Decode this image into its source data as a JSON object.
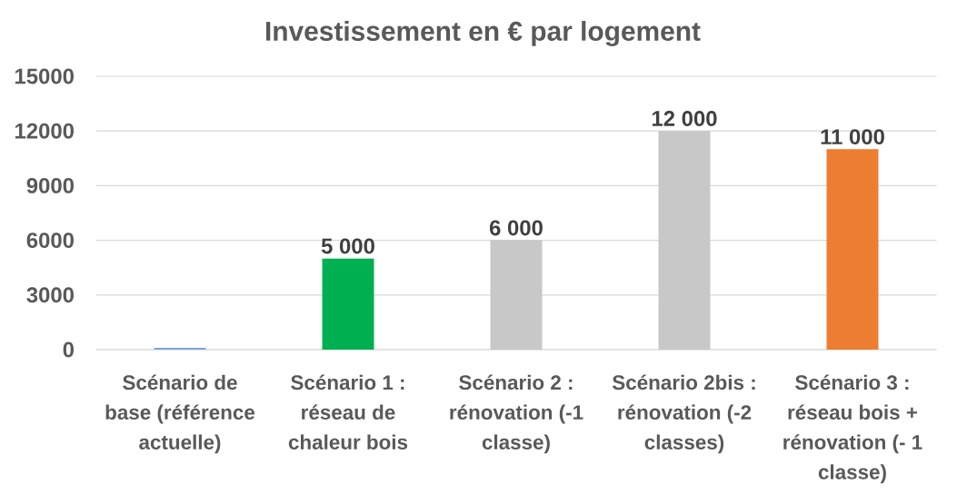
{
  "chart_data": {
    "type": "bar",
    "title": "Investissement en € par logement",
    "categories": [
      "Scénario de base (référence actuelle)",
      "Scénario 1 : réseau de chaleur bois",
      "Scénario 2 : rénovation (-1 classe)",
      "Scénario 2bis : rénovation (-2 classes)",
      "Scénario 3 : réseau bois + rénovation (- 1 classe)"
    ],
    "values": [
      100,
      5000,
      6000,
      12000,
      11000
    ],
    "colors": [
      "#7ea6d9",
      "#00b050",
      "#c8c8c8",
      "#c8c8c8",
      "#ed7d31"
    ],
    "value_labels": [
      null,
      "5 000",
      "6 000",
      "12 000",
      "11 000"
    ],
    "ylim": [
      0,
      15000
    ],
    "yticks": [
      0,
      3000,
      6000,
      9000,
      12000,
      15000
    ],
    "grid": "y"
  }
}
